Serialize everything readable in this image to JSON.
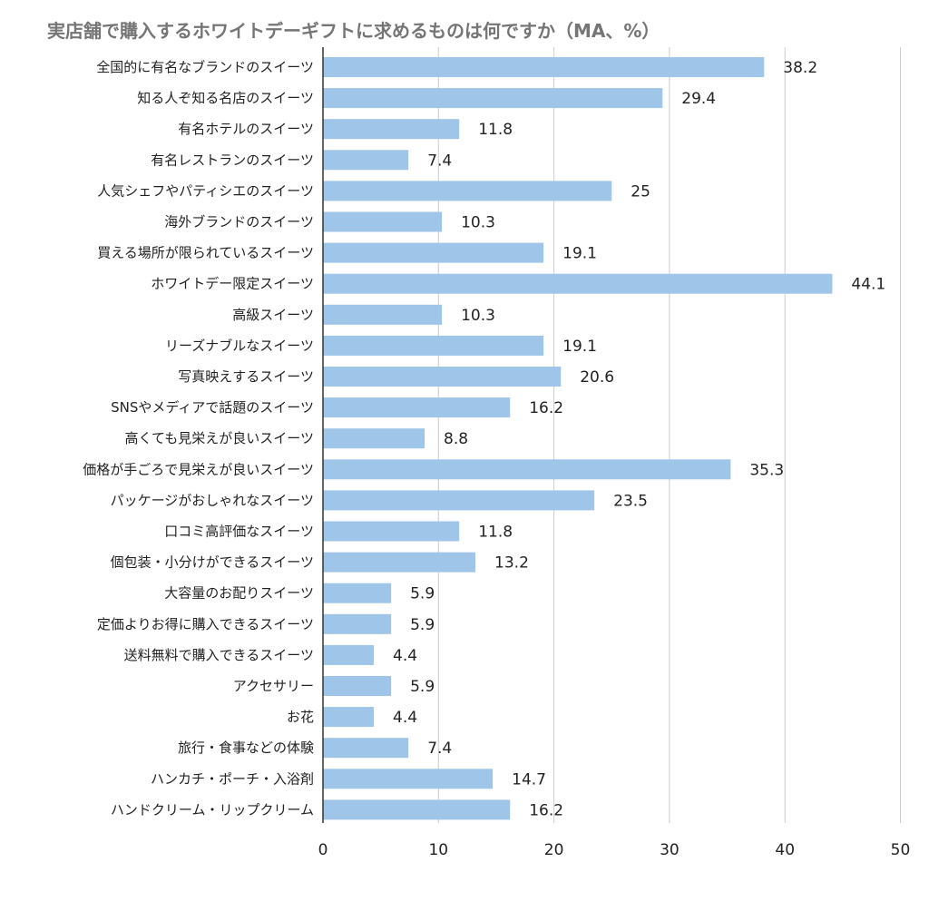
{
  "chart_data": {
    "type": "bar",
    "orientation": "horizontal",
    "title": "実店舗で購入するホワイトデーギフトに求めるものは何ですか（MA、%）",
    "xlabel": "",
    "ylabel": "",
    "xlim": [
      0,
      50
    ],
    "ticks": [
      "0",
      "10",
      "20",
      "30",
      "40",
      "50"
    ],
    "tick_values": [
      0,
      10,
      20,
      30,
      40,
      50
    ],
    "grid": true,
    "legend": "none",
    "bar_color": "#9fc5e8",
    "categories": [
      "全国的に有名なブランドのスイーツ",
      "知る人ぞ知る名店のスイーツ",
      "有名ホテルのスイーツ",
      "有名レストランのスイーツ",
      "人気シェフやパティシエのスイーツ",
      "海外ブランドのスイーツ",
      "買える場所が限られているスイーツ",
      "ホワイトデー限定スイーツ",
      "高級スイーツ",
      "リーズナブルなスイーツ",
      "写真映えするスイーツ",
      "SNSやメディアで話題のスイーツ",
      "高くても見栄えが良いスイーツ",
      "価格が手ごろで見栄えが良いスイーツ",
      "パッケージがおしゃれなスイーツ",
      "口コミ高評価なスイーツ",
      "個包装・小分けができるスイーツ",
      "大容量のお配りスイーツ",
      "定価よりお得に購入できるスイーツ",
      "送料無料で購入できるスイーツ",
      "アクセサリー",
      "お花",
      "旅行・食事などの体験",
      "ハンカチ・ポーチ・入浴剤",
      "ハンドクリーム・リップクリーム"
    ],
    "values": [
      38.2,
      29.4,
      11.8,
      7.4,
      25,
      10.3,
      19.1,
      44.1,
      10.3,
      19.1,
      20.6,
      16.2,
      8.8,
      35.3,
      23.5,
      11.8,
      13.2,
      5.9,
      5.9,
      4.4,
      5.9,
      4.4,
      7.4,
      14.7,
      16.2
    ],
    "value_labels": [
      "38.2",
      "29.4",
      "11.8",
      "7.4",
      "25",
      "10.3",
      "19.1",
      "44.1",
      "10.3",
      "19.1",
      "20.6",
      "16.2",
      "8.8",
      "35.3",
      "23.5",
      "11.8",
      "13.2",
      "5.9",
      "5.9",
      "4.4",
      "5.9",
      "4.4",
      "7.4",
      "14.7",
      "16.2"
    ]
  }
}
